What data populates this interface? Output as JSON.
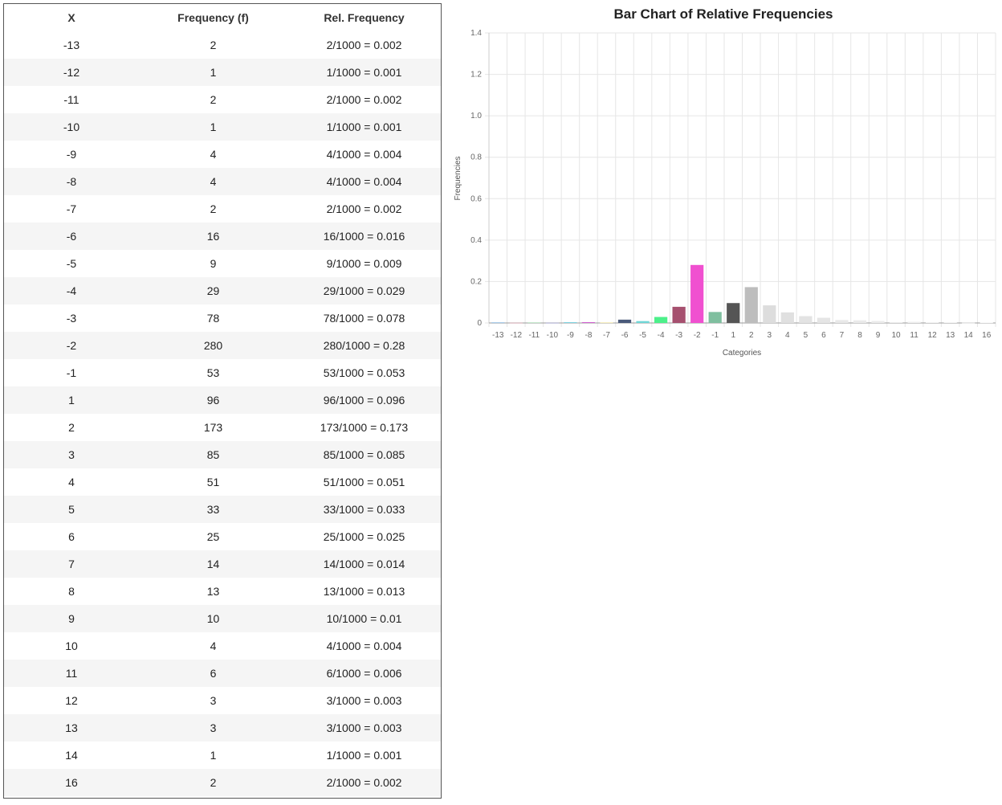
{
  "table": {
    "headers": [
      "X",
      "Frequency (f)",
      "Rel. Frequency"
    ],
    "rows": [
      [
        "-13",
        "2",
        "2/1000 = 0.002"
      ],
      [
        "-12",
        "1",
        "1/1000 = 0.001"
      ],
      [
        "-11",
        "2",
        "2/1000 = 0.002"
      ],
      [
        "-10",
        "1",
        "1/1000 = 0.001"
      ],
      [
        "-9",
        "4",
        "4/1000 = 0.004"
      ],
      [
        "-8",
        "4",
        "4/1000 = 0.004"
      ],
      [
        "-7",
        "2",
        "2/1000 = 0.002"
      ],
      [
        "-6",
        "16",
        "16/1000 = 0.016"
      ],
      [
        "-5",
        "9",
        "9/1000 = 0.009"
      ],
      [
        "-4",
        "29",
        "29/1000 = 0.029"
      ],
      [
        "-3",
        "78",
        "78/1000 = 0.078"
      ],
      [
        "-2",
        "280",
        "280/1000 = 0.28"
      ],
      [
        "-1",
        "53",
        "53/1000 = 0.053"
      ],
      [
        "1",
        "96",
        "96/1000 = 0.096"
      ],
      [
        "2",
        "173",
        "173/1000 = 0.173"
      ],
      [
        "3",
        "85",
        "85/1000 = 0.085"
      ],
      [
        "4",
        "51",
        "51/1000 = 0.051"
      ],
      [
        "5",
        "33",
        "33/1000 = 0.033"
      ],
      [
        "6",
        "25",
        "25/1000 = 0.025"
      ],
      [
        "7",
        "14",
        "14/1000 = 0.014"
      ],
      [
        "8",
        "13",
        "13/1000 = 0.013"
      ],
      [
        "9",
        "10",
        "10/1000 = 0.01"
      ],
      [
        "10",
        "4",
        "4/1000 = 0.004"
      ],
      [
        "11",
        "6",
        "6/1000 = 0.006"
      ],
      [
        "12",
        "3",
        "3/1000 = 0.003"
      ],
      [
        "13",
        "3",
        "3/1000 = 0.003"
      ],
      [
        "14",
        "1",
        "1/1000 = 0.001"
      ],
      [
        "16",
        "2",
        "2/1000 = 0.002"
      ]
    ]
  },
  "chart_data": {
    "type": "bar",
    "title": "Bar Chart of Relative Frequencies",
    "xlabel": "Categories",
    "ylabel": "Frequencies",
    "ylim": [
      0,
      1.4
    ],
    "yticks": [
      "0",
      "0.2",
      "0.4",
      "0.6",
      "0.8",
      "1.0",
      "1.2",
      "1.4"
    ],
    "grid": true,
    "categories": [
      "-13",
      "-12",
      "-11",
      "-10",
      "-9",
      "-8",
      "-7",
      "-6",
      "-5",
      "-4",
      "-3",
      "-2",
      "-1",
      "1",
      "2",
      "3",
      "4",
      "5",
      "6",
      "7",
      "8",
      "9",
      "10",
      "11",
      "12",
      "13",
      "14",
      "16"
    ],
    "values": [
      0.002,
      0.001,
      0.002,
      0.001,
      0.004,
      0.004,
      0.002,
      0.016,
      0.009,
      0.029,
      0.078,
      0.28,
      0.053,
      0.096,
      0.173,
      0.085,
      0.051,
      0.033,
      0.025,
      0.014,
      0.013,
      0.01,
      0.004,
      0.006,
      0.003,
      0.003,
      0.001,
      0.002
    ],
    "colors": [
      "#5b9bd5",
      "#e8a0b0",
      "#8fd19e",
      "#a0a0e0",
      "#7fd3e0",
      "#d05fd0",
      "#f2e08a",
      "#4a5a7a",
      "#6fd6d6",
      "#4cf08a",
      "#a6506f",
      "#f050d0",
      "#7fbf9f",
      "#555555",
      "#bdbdbd",
      "#dddddd",
      "#e0e0e0",
      "#e3e3e3",
      "#e5e5e5",
      "#e8e8e8",
      "#eaeaea",
      "#ececec",
      "#eeeeee",
      "#f0f0f0",
      "#f1f1f1",
      "#f2f2f2",
      "#f3f3f3",
      "#f4f4f4"
    ]
  }
}
